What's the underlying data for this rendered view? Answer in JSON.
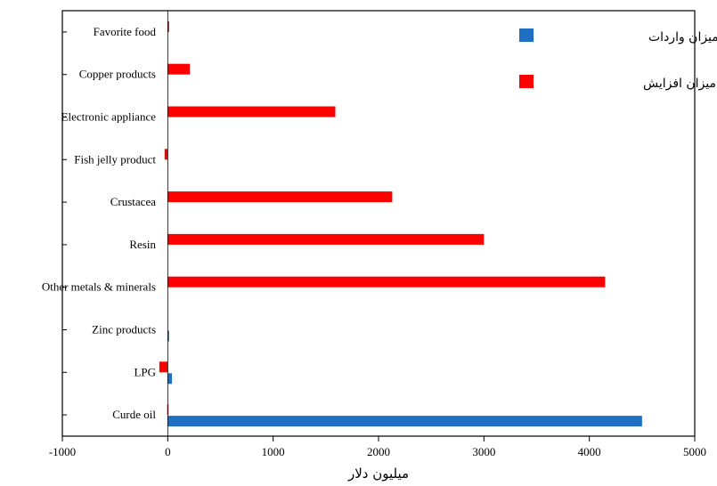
{
  "chart_data": {
    "type": "bar",
    "orientation": "horizontal",
    "categories": [
      "Curde oil",
      "LPG",
      "Zinc products",
      "Other metals & minerals",
      "Resin",
      "Crustacea",
      "Fish jelly product",
      "Electronic appliance",
      "Copper products",
      "Favorite food"
    ],
    "series": [
      {
        "name": "میزان واردات",
        "color": "#1f6fc4",
        "values": [
          4500,
          40,
          10,
          0,
          0,
          0,
          0,
          0,
          0,
          0
        ]
      },
      {
        "name": "میزان افزایش",
        "color": "#ff0000",
        "values": [
          -5,
          -80,
          0,
          4150,
          3000,
          2130,
          -30,
          1590,
          210,
          10
        ]
      }
    ],
    "xlim": [
      -1000,
      5000
    ],
    "xticks": [
      -1000,
      0,
      1000,
      2000,
      3000,
      4000,
      5000
    ],
    "xlabel": "میلیون دلار",
    "ylabel": "",
    "title": "",
    "grid": false,
    "legend": "top-right"
  }
}
